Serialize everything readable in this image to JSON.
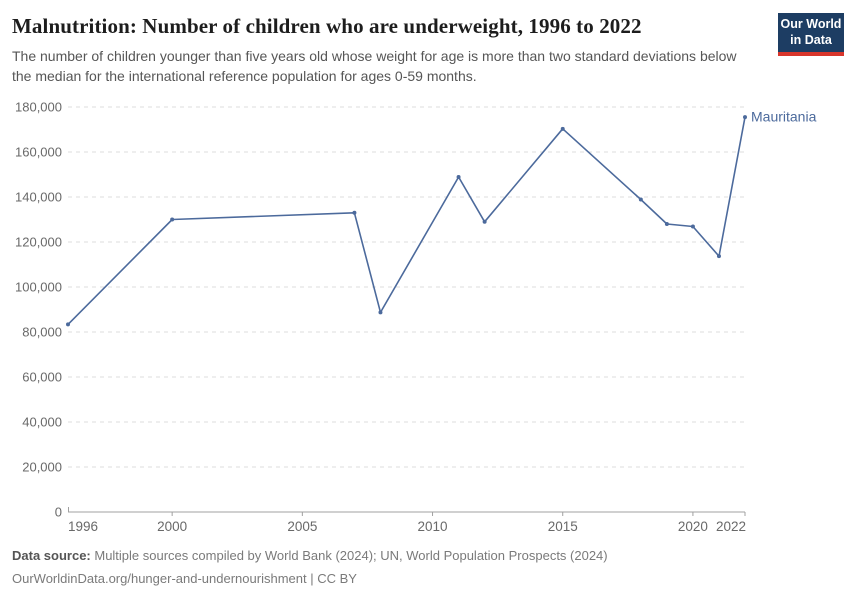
{
  "header": {
    "title": "Malnutrition: Number of children who are underweight, 1996 to 2022",
    "subtitle": "The number of children younger than five years old whose weight for age is more than two standard deviations below the median for the international reference population for ages 0-59 months.",
    "logo_line1": "Our World",
    "logo_line2": "in Data"
  },
  "colors": {
    "line": "#4C6A9C",
    "logo_bg": "#1d3d63",
    "logo_accent": "#d8352b",
    "grid": "#dcdcdc",
    "axis": "#a0a0a0",
    "tick_label": "#696969"
  },
  "chart_data": {
    "type": "line",
    "title": "Malnutrition: Number of children who are underweight, 1996 to 2022",
    "entity_label": "Mauritania",
    "series": [
      {
        "name": "Mauritania",
        "x": [
          1996,
          2000,
          2007,
          2008,
          2011,
          2012,
          2015,
          2018,
          2019,
          2020,
          2021,
          2022
        ],
        "values": [
          83400,
          130000,
          133000,
          88700,
          148900,
          129000,
          170300,
          138900,
          128000,
          126900,
          113700,
          175500
        ]
      }
    ],
    "xlim": [
      1996,
      2022
    ],
    "ylim": [
      0,
      180000
    ],
    "x_ticks": [
      1996,
      2000,
      2005,
      2010,
      2015,
      2020,
      2022
    ],
    "y_ticks": [
      0,
      20000,
      40000,
      60000,
      80000,
      100000,
      120000,
      140000,
      160000,
      180000
    ],
    "grid": "horizontal-dashed",
    "legend": "entity-label-at-line-end"
  },
  "footer": {
    "source_label": "Data source:",
    "source_text": " Multiple sources compiled by World Bank (2024); UN, World Population Prospects (2024)",
    "license": "OurWorldinData.org/hunger-and-undernourishment | CC BY"
  }
}
